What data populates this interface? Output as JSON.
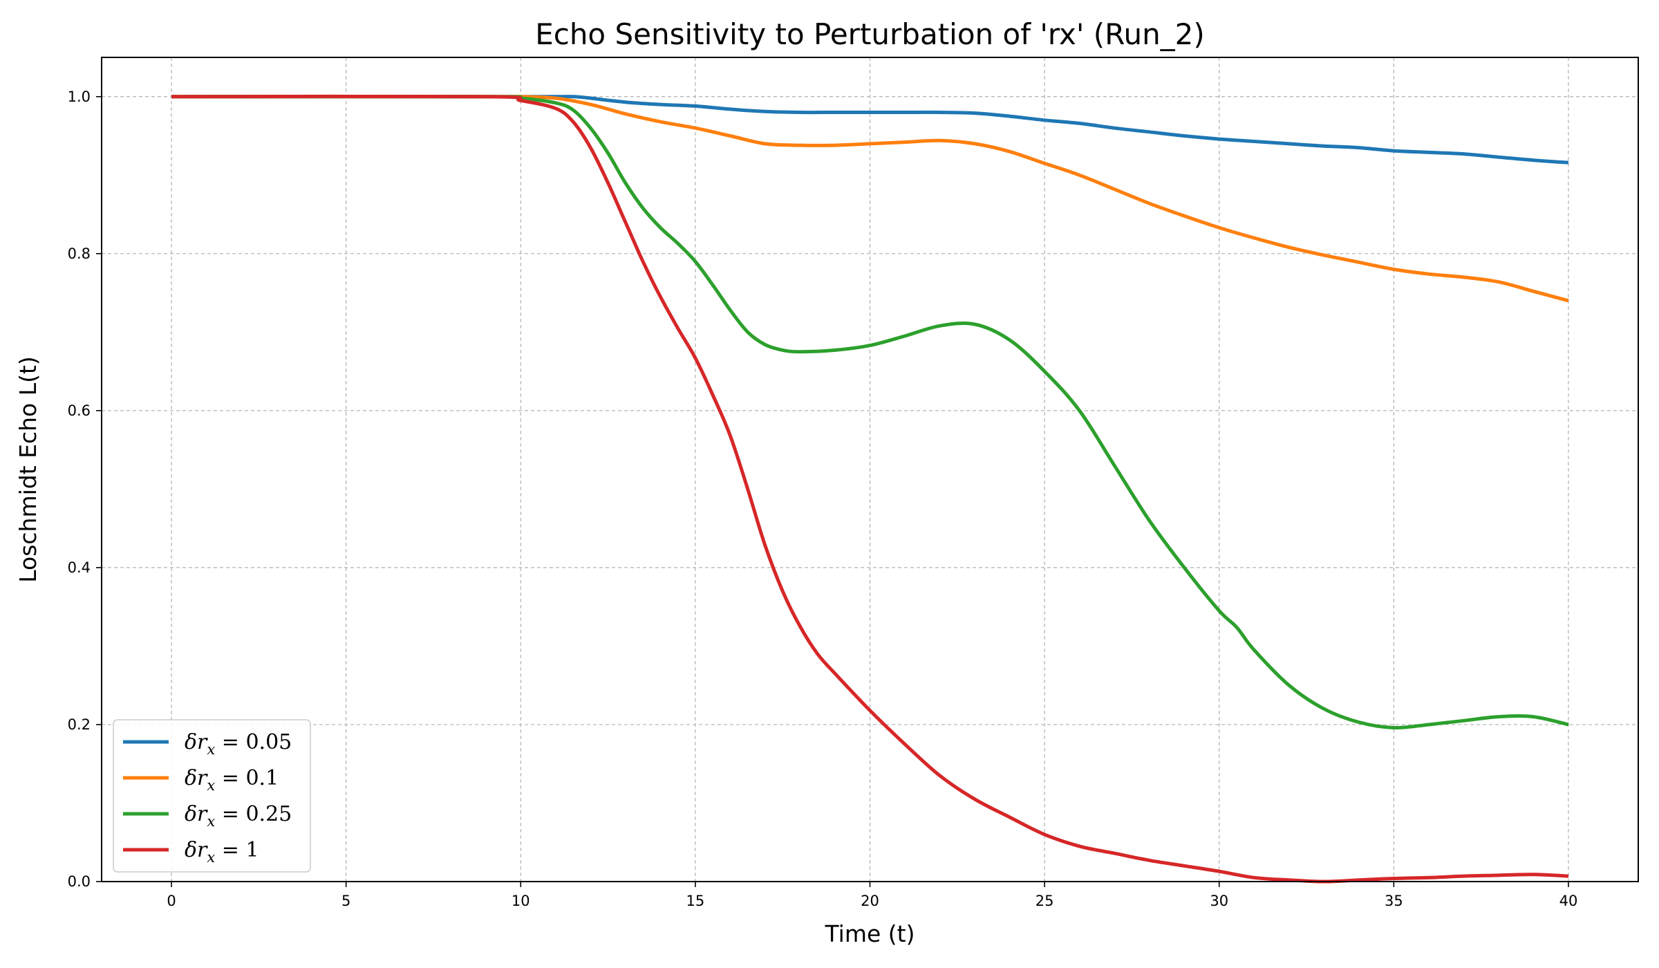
{
  "chart_data": {
    "type": "line",
    "title": "Echo Sensitivity to Perturbation of 'rx' (Run_2)",
    "xlabel": "Time (t)",
    "ylabel": "Loschmidt Echo L(t)",
    "xlim": [
      -2,
      42
    ],
    "ylim": [
      0,
      1.05
    ],
    "xticks": [
      0,
      5,
      10,
      15,
      20,
      25,
      30,
      35,
      40
    ],
    "yticks": [
      0.0,
      0.2,
      0.4,
      0.6,
      0.8,
      1.0
    ],
    "xtick_labels": [
      "0",
      "5",
      "10",
      "15",
      "20",
      "25",
      "30",
      "35",
      "40"
    ],
    "ytick_labels": [
      "0.0",
      "0.2",
      "0.4",
      "0.6",
      "0.8",
      "1.0"
    ],
    "grid": true,
    "legend_position": "bottom-left",
    "series": [
      {
        "name": "δr_x = 0.05",
        "color": "#1f77b4",
        "x": [
          0,
          9,
          10,
          11,
          11.5,
          12,
          13,
          14,
          15,
          16,
          17,
          18,
          19,
          20,
          21,
          22,
          23,
          24,
          25,
          26,
          27,
          28,
          29,
          30,
          31,
          32,
          33,
          34,
          35,
          36,
          37,
          38,
          39,
          40
        ],
        "y": [
          1.0,
          1.0,
          1.0,
          1.0,
          1.0,
          0.998,
          0.993,
          0.99,
          0.988,
          0.984,
          0.981,
          0.98,
          0.98,
          0.98,
          0.98,
          0.98,
          0.979,
          0.975,
          0.97,
          0.966,
          0.96,
          0.955,
          0.95,
          0.946,
          0.943,
          0.94,
          0.937,
          0.935,
          0.931,
          0.929,
          0.927,
          0.923,
          0.919,
          0.916
        ]
      },
      {
        "name": "δr_x = 0.1",
        "color": "#ff7f0e",
        "x": [
          0,
          9,
          10,
          11,
          12,
          13,
          14,
          15,
          16,
          17,
          18,
          19,
          20,
          21,
          22,
          23,
          24,
          25,
          26,
          27,
          28,
          29,
          30,
          31,
          32,
          33,
          34,
          35,
          36,
          37,
          38,
          39,
          40
        ],
        "y": [
          1.0,
          1.0,
          1.0,
          0.998,
          0.99,
          0.978,
          0.968,
          0.96,
          0.95,
          0.94,
          0.938,
          0.938,
          0.94,
          0.942,
          0.944,
          0.94,
          0.93,
          0.915,
          0.9,
          0.882,
          0.864,
          0.848,
          0.833,
          0.82,
          0.808,
          0.798,
          0.789,
          0.78,
          0.774,
          0.77,
          0.764,
          0.752,
          0.74
        ]
      },
      {
        "name": "δr_x = 0.25",
        "color": "#2ca02c",
        "x": [
          0,
          9,
          10,
          11,
          11.5,
          12,
          12.5,
          13,
          13.5,
          14,
          14.5,
          15,
          15.5,
          16,
          16.5,
          17,
          17.5,
          18,
          19,
          20,
          21,
          22,
          23,
          24,
          25,
          26,
          27,
          28,
          29,
          30,
          30.5,
          31,
          32,
          33,
          34,
          35,
          36,
          37,
          38,
          39,
          40
        ],
        "y": [
          1.0,
          1.0,
          0.998,
          0.992,
          0.983,
          0.96,
          0.928,
          0.89,
          0.858,
          0.833,
          0.813,
          0.79,
          0.76,
          0.728,
          0.7,
          0.684,
          0.677,
          0.675,
          0.677,
          0.683,
          0.695,
          0.708,
          0.71,
          0.69,
          0.65,
          0.6,
          0.53,
          0.46,
          0.4,
          0.345,
          0.324,
          0.295,
          0.25,
          0.22,
          0.203,
          0.196,
          0.2,
          0.205,
          0.21,
          0.21,
          0.2
        ]
      },
      {
        "name": "δr_x = 1",
        "color": "#d62728",
        "x": [
          0,
          9,
          10,
          11,
          11.5,
          12,
          12.5,
          13,
          13.5,
          14,
          14.5,
          15,
          15.5,
          16,
          16.5,
          17,
          17.5,
          18,
          18.5,
          19,
          20,
          21,
          22,
          23,
          24,
          25,
          26,
          27,
          28,
          29,
          30,
          31,
          32,
          33,
          34,
          35,
          36,
          37,
          38,
          39,
          40
        ],
        "y": [
          1.0,
          1.0,
          0.995,
          0.985,
          0.968,
          0.935,
          0.89,
          0.84,
          0.79,
          0.745,
          0.705,
          0.667,
          0.62,
          0.568,
          0.5,
          0.428,
          0.37,
          0.325,
          0.29,
          0.265,
          0.218,
          0.175,
          0.135,
          0.105,
          0.082,
          0.06,
          0.045,
          0.036,
          0.027,
          0.02,
          0.013,
          0.005,
          0.002,
          0.0,
          0.002,
          0.004,
          0.005,
          0.007,
          0.008,
          0.009,
          0.007
        ]
      }
    ],
    "legend": [
      {
        "prefix": "δr",
        "subscript": "x",
        "suffix": " = 0.05"
      },
      {
        "prefix": "δr",
        "subscript": "x",
        "suffix": " = 0.1"
      },
      {
        "prefix": "δr",
        "subscript": "x",
        "suffix": " = 0.25"
      },
      {
        "prefix": "δr",
        "subscript": "x",
        "suffix": " = 1"
      }
    ]
  }
}
